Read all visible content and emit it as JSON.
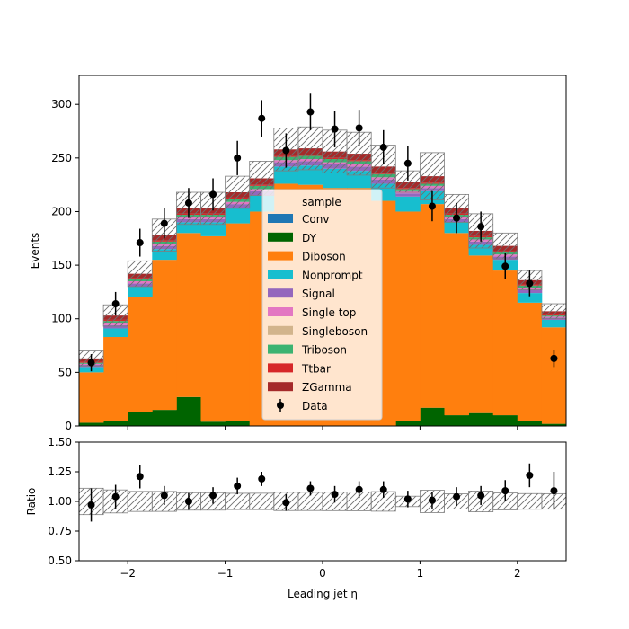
{
  "chart_data": {
    "type": "bar",
    "stacked": true,
    "x_edges": [
      -2.5,
      -2.25,
      -2.0,
      -1.75,
      -1.5,
      -1.25,
      -1.0,
      -0.75,
      -0.5,
      -0.25,
      0.0,
      0.25,
      0.5,
      0.75,
      1.0,
      1.25,
      1.5,
      1.75,
      2.0,
      2.25,
      2.5
    ],
    "xlabel": "Leading jet  η",
    "main": {
      "ylabel": "Events",
      "ylim": [
        0,
        327
      ],
      "yticks": [
        "0",
        "50",
        "100",
        "150",
        "200",
        "250",
        "300"
      ],
      "ytick_values": [
        0,
        50,
        100,
        150,
        200,
        250,
        300
      ]
    },
    "ratio": {
      "ylabel": "Ratio",
      "ylim": [
        0.5,
        1.5
      ],
      "yticks": [
        "0.50",
        "0.75",
        "1.00",
        "1.25",
        "1.50"
      ],
      "ytick_values": [
        0.5,
        0.75,
        1.0,
        1.25,
        1.5
      ]
    },
    "xticks": [
      "−2",
      "−1",
      "0",
      "1",
      "2"
    ],
    "xtick_values": [
      -2,
      -1,
      0,
      1,
      2
    ],
    "legend": {
      "title": "sample",
      "placement": "center"
    },
    "series": [
      {
        "name": "Conv",
        "color": "#1f77b4",
        "values": [
          0,
          0,
          0,
          0,
          0,
          0,
          0,
          0,
          0,
          0,
          0,
          0,
          0,
          0,
          0,
          0,
          0,
          0,
          0,
          0
        ]
      },
      {
        "name": "DY",
        "color": "#006400",
        "values": [
          3,
          5,
          13,
          15,
          27,
          4,
          5,
          0,
          0,
          0,
          0,
          0,
          0,
          5,
          17,
          10,
          12,
          10,
          5,
          2
        ]
      },
      {
        "name": "Diboson",
        "color": "#ff7f0e",
        "values": [
          47,
          78,
          107,
          140,
          153,
          173,
          184,
          200,
          226,
          225,
          222,
          222,
          210,
          195,
          190,
          170,
          147,
          135,
          110,
          90
        ]
      },
      {
        "name": "Nonprompt",
        "color": "#17becf",
        "values": [
          5,
          8,
          10,
          10,
          10,
          13,
          14,
          15,
          16,
          18,
          18,
          16,
          16,
          14,
          12,
          10,
          10,
          10,
          9,
          7
        ]
      },
      {
        "name": "Signal",
        "color": "#9467bd",
        "values": [
          2,
          3,
          3,
          3,
          3,
          3,
          4,
          4,
          4,
          4,
          4,
          4,
          4,
          3,
          3,
          3,
          3,
          3,
          3,
          2
        ]
      },
      {
        "name": "Single top",
        "color": "#e377c2",
        "values": [
          1,
          2,
          2,
          2,
          2,
          2,
          2,
          2,
          2,
          2,
          2,
          2,
          2,
          2,
          2,
          2,
          2,
          2,
          2,
          1
        ]
      },
      {
        "name": "Singleboson",
        "color": "#d2b48c",
        "values": [
          0,
          0,
          0,
          0,
          0,
          0,
          0,
          0,
          0,
          0,
          0,
          0,
          0,
          0,
          0,
          0,
          0,
          0,
          0,
          0
        ]
      },
      {
        "name": "Triboson",
        "color": "#3cb371",
        "values": [
          1,
          2,
          2,
          2,
          2,
          2,
          3,
          3,
          3,
          3,
          3,
          3,
          3,
          2,
          2,
          2,
          2,
          2,
          2,
          1
        ]
      },
      {
        "name": "Ttbar",
        "color": "#d62728",
        "values": [
          1,
          1,
          1,
          1,
          1,
          1,
          1,
          1,
          1,
          1,
          1,
          1,
          1,
          1,
          1,
          1,
          1,
          1,
          1,
          1
        ]
      },
      {
        "name": "ZGamma",
        "color": "#a52a2a",
        "values": [
          3,
          4,
          4,
          5,
          5,
          5,
          5,
          6,
          6,
          6,
          6,
          6,
          6,
          6,
          6,
          5,
          5,
          5,
          4,
          3
        ]
      }
    ],
    "mc_uncertainty": [
      7,
      10,
      12,
      15,
      15,
      15,
      15,
      16,
      20,
      20,
      20,
      20,
      20,
      10,
      22,
      13,
      16,
      12,
      9,
      7
    ],
    "data": {
      "name": "Data",
      "x": [
        -2.375,
        -2.125,
        -1.875,
        -1.625,
        -1.375,
        -1.125,
        -0.875,
        -0.625,
        -0.375,
        -0.125,
        0.125,
        0.375,
        0.625,
        0.875,
        1.125,
        1.375,
        1.625,
        1.875,
        2.125,
        2.375
      ],
      "y": [
        59,
        114,
        171,
        189,
        208,
        216,
        250,
        287,
        257,
        293,
        277,
        278,
        260,
        245,
        205,
        194,
        186,
        149,
        133,
        63
      ],
      "yerr": [
        8,
        11,
        13,
        14,
        14,
        15,
        16,
        17,
        16,
        17,
        17,
        17,
        16,
        16,
        14,
        14,
        14,
        12,
        12,
        8
      ]
    },
    "ratio_points": [
      0.97,
      1.04,
      1.21,
      1.05,
      1.0,
      1.05,
      1.13,
      1.19,
      0.99,
      1.11,
      1.06,
      1.1,
      1.1,
      1.02,
      1.01,
      1.04,
      1.05,
      1.09,
      1.22,
      1.09
    ],
    "ratio_err": [
      0.14,
      0.1,
      0.1,
      0.08,
      0.07,
      0.07,
      0.07,
      0.06,
      0.07,
      0.06,
      0.07,
      0.07,
      0.07,
      0.07,
      0.07,
      0.08,
      0.08,
      0.09,
      0.1,
      0.16
    ]
  }
}
